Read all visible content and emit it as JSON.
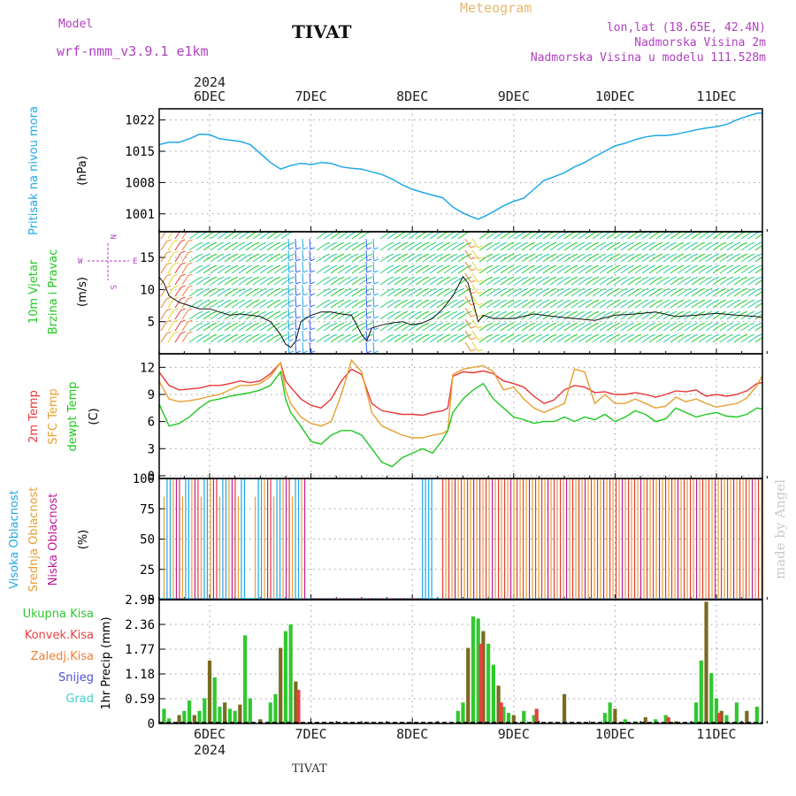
{
  "header": {
    "model_label": "Model",
    "model_name": "wrf-nmm_v3.9.1 e1km",
    "station": "TIVAT",
    "product": "Meteogram",
    "lonlat": "lon,lat (18.65E, 42.4N)",
    "elevation": "Nadmorska Visina 2m",
    "model_elevation": "Nadmorska Visina u modelu 111.528m",
    "credit": "made by Angel",
    "footer_station": "TIVAT"
  },
  "time_axis": {
    "year": "2024",
    "days": [
      "6DEC",
      "7DEC",
      "8DEC",
      "9DEC",
      "10DEC",
      "11DEC"
    ]
  },
  "colors": {
    "pressure": "#20a8e8",
    "temp2m": "#e83838",
    "sfc": "#e8a030",
    "dewpt": "#20c820",
    "cloud_high": "#20a8e8",
    "cloud_mid": "#e8a030",
    "cloud_low": "#c0189a",
    "precip_total": "#30c830",
    "precip_conv": "#e84040",
    "precip_freeze": "#f08030",
    "precip_snow": "#5050e0",
    "precip_hail": "#40d0d0",
    "precip_brown": "#7a6a20"
  },
  "panels": {
    "pressure": {
      "label1": "Pritisak na nivou mora",
      "unit": "(hPa)"
    },
    "wind": {
      "label1": "10m Vjetar",
      "label2": "Brzina i Pravac",
      "unit": "(m/s)",
      "compass_w": "W",
      "compass_e": "E",
      "compass_n": "N",
      "compass_s": "S"
    },
    "temperature": {
      "label1": "2m Temp",
      "label2": "SFC Temp",
      "label3": "dewpt Temp",
      "unit": "(C)"
    },
    "clouds": {
      "label1": "Visoka Oblacnost",
      "label2": "Srednja Oblacnost",
      "label3": "Niska Oblacnost",
      "unit": "(%)"
    },
    "precip": {
      "legend": [
        "Ukupna Kisa",
        "Konvek.Kisa",
        "Zaledj.Kisa",
        "Snijeg",
        "Grad"
      ],
      "unit": "1hr Precip (mm)"
    }
  },
  "chart_data": [
    {
      "type": "line",
      "panel": "pressure",
      "ylabel": "(hPa)",
      "yticks": [
        1001,
        1008,
        1015,
        1022
      ],
      "ylim": [
        997,
        1024.5
      ],
      "series": [
        {
          "name": "Pritisak na nivou mora",
          "x": [
            -0.5,
            -0.4,
            -0.3,
            -0.2,
            -0.1,
            0.0,
            0.1,
            0.2,
            0.3,
            0.4,
            0.5,
            0.6,
            0.7,
            0.8,
            0.9,
            0.95,
            1.0,
            1.1,
            1.2,
            1.3,
            1.4,
            1.5,
            1.6,
            1.7,
            1.8,
            1.9,
            2.0,
            2.1,
            2.2,
            2.3,
            2.4,
            2.5,
            2.6,
            2.65,
            2.7,
            2.8,
            2.9,
            3.0,
            3.1,
            3.2,
            3.3,
            3.4,
            3.5,
            3.6,
            3.7,
            3.8,
            3.9,
            4.0,
            4.1,
            4.2,
            4.3,
            4.4,
            4.5,
            4.6,
            4.7,
            4.8,
            4.9,
            5.0,
            5.1,
            5.2,
            5.3,
            5.4,
            5.5
          ],
          "values": [
            1016.5,
            1017.0,
            1017.0,
            1017.8,
            1018.8,
            1018.7,
            1017.8,
            1017.5,
            1017.2,
            1016.5,
            1014.5,
            1012.5,
            1011.0,
            1011.8,
            1012.3,
            1012.2,
            1012.0,
            1012.5,
            1012.3,
            1011.5,
            1011.2,
            1011.0,
            1010.4,
            1009.8,
            1008.8,
            1007.5,
            1006.5,
            1005.8,
            1005.2,
            1004.6,
            1002.5,
            1001.2,
            1000.2,
            999.8,
            1000.3,
            1001.5,
            1002.8,
            1003.8,
            1004.5,
            1006.5,
            1008.5,
            1009.3,
            1010.2,
            1011.5,
            1012.5,
            1013.8,
            1015.0,
            1016.2,
            1016.8,
            1017.6,
            1018.2,
            1018.5,
            1018.5,
            1018.8,
            1019.3,
            1019.8,
            1020.2,
            1020.5,
            1021.0,
            1022.0,
            1022.8,
            1023.5,
            1023.6
          ]
        }
      ]
    },
    {
      "type": "line",
      "panel": "wind",
      "ylabel": "(m/s)",
      "yticks": [
        5,
        10,
        15
      ],
      "ylim": [
        0,
        19
      ],
      "series": [
        {
          "name": "10m Vjetar brzina",
          "x": [
            -0.5,
            -0.45,
            -0.4,
            -0.3,
            -0.2,
            -0.1,
            0.0,
            0.1,
            0.2,
            0.3,
            0.4,
            0.5,
            0.6,
            0.7,
            0.75,
            0.8,
            0.85,
            0.9,
            1.0,
            1.1,
            1.2,
            1.3,
            1.4,
            1.5,
            1.55,
            1.6,
            1.7,
            1.8,
            1.9,
            2.0,
            2.1,
            2.2,
            2.3,
            2.4,
            2.5,
            2.55,
            2.6,
            2.65,
            2.7,
            2.8,
            2.9,
            3.0,
            3.2,
            3.4,
            3.6,
            3.8,
            4.0,
            4.2,
            4.4,
            4.6,
            4.8,
            5.0,
            5.2,
            5.4,
            5.5
          ],
          "values": [
            12,
            11,
            9,
            8,
            7.5,
            7,
            7,
            6.5,
            6,
            6.2,
            6,
            5.8,
            5,
            3,
            1.5,
            1,
            2,
            5,
            6,
            6.5,
            6.5,
            6.2,
            6,
            3,
            2,
            4,
            4.5,
            4.8,
            5,
            4.5,
            4.8,
            5.5,
            7,
            9,
            12,
            11,
            8,
            5,
            6,
            5.5,
            5.5,
            5.5,
            6.2,
            5.8,
            5.5,
            5.2,
            6,
            6.2,
            6.5,
            5.8,
            6,
            6.3,
            6,
            5.8,
            5.5
          ]
        }
      ]
    },
    {
      "type": "line",
      "panel": "temperature",
      "ylabel": "(C)",
      "yticks": [
        0,
        3,
        6,
        9,
        12
      ],
      "ylim": [
        -0.3,
        13.5
      ],
      "x": [
        -0.5,
        -0.4,
        -0.3,
        -0.2,
        -0.1,
        0.0,
        0.1,
        0.2,
        0.3,
        0.4,
        0.5,
        0.6,
        0.7,
        0.75,
        0.8,
        0.9,
        1.0,
        1.1,
        1.2,
        1.3,
        1.4,
        1.5,
        1.6,
        1.7,
        1.8,
        1.9,
        2.0,
        2.1,
        2.2,
        2.3,
        2.35,
        2.4,
        2.5,
        2.6,
        2.7,
        2.8,
        2.9,
        3.0,
        3.1,
        3.2,
        3.3,
        3.4,
        3.5,
        3.6,
        3.7,
        3.8,
        3.9,
        4.0,
        4.1,
        4.2,
        4.3,
        4.4,
        4.5,
        4.6,
        4.7,
        4.8,
        4.9,
        5.0,
        5.1,
        5.2,
        5.3,
        5.4,
        5.5
      ],
      "series": [
        {
          "name": "2m Temp",
          "values": [
            11.5,
            10,
            9.5,
            9.6,
            9.7,
            10,
            10,
            10.2,
            10.5,
            10.3,
            10.5,
            11.3,
            12.5,
            10.5,
            9.8,
            8.5,
            7.8,
            7.5,
            8.5,
            10.5,
            11.8,
            11.2,
            8,
            7.2,
            7,
            6.8,
            6.8,
            6.7,
            7.0,
            7.2,
            7.5,
            11.0,
            11.5,
            11.4,
            11.6,
            11.3,
            10.5,
            10.2,
            9.8,
            8.8,
            8.0,
            8.4,
            9.5,
            10,
            9.8,
            9.2,
            9.3,
            9.0,
            9.0,
            9.2,
            9.0,
            8.7,
            9.0,
            9.4,
            9.3,
            9.5,
            8.8,
            9.0,
            8.8,
            9.0,
            9.4,
            10.2,
            10.4
          ]
        },
        {
          "name": "SFC Temp",
          "values": [
            10.5,
            8.5,
            8.2,
            8.3,
            8.5,
            8.8,
            9.0,
            9.5,
            10.0,
            10.0,
            10.2,
            11.0,
            12.5,
            9.5,
            8.0,
            6.5,
            5.8,
            5.5,
            6.0,
            9.0,
            12.8,
            11.5,
            7.0,
            5.5,
            5.0,
            4.5,
            4.2,
            4.2,
            4.5,
            4.7,
            5.0,
            11.2,
            11.8,
            12.0,
            12.2,
            11.5,
            9.5,
            9.8,
            8.5,
            7.5,
            7.0,
            7.5,
            8.0,
            11.8,
            11.5,
            8.0,
            9.0,
            8.0,
            8.0,
            8.5,
            8.0,
            7.5,
            7.7,
            8.7,
            8.2,
            8.5,
            8.0,
            7.6,
            7.8,
            8.0,
            8.6,
            10.0,
            12.0
          ]
        },
        {
          "name": "dewpt Temp",
          "values": [
            8.0,
            5.5,
            5.8,
            6.5,
            7.5,
            8.3,
            8.5,
            8.8,
            9.0,
            9.2,
            9.5,
            10.0,
            11.5,
            8.5,
            7.0,
            5.5,
            3.8,
            3.5,
            4.5,
            5.0,
            5.0,
            4.5,
            3.0,
            1.5,
            1.0,
            2.0,
            2.5,
            3.0,
            2.5,
            4.0,
            5.0,
            7.0,
            8.5,
            9.5,
            10.2,
            8.5,
            7.5,
            6.5,
            6.2,
            5.8,
            6.0,
            6.0,
            6.5,
            6.0,
            6.5,
            6.2,
            6.8,
            6.0,
            6.5,
            7.2,
            6.8,
            6.0,
            6.3,
            7.5,
            7.0,
            6.5,
            6.8,
            7.0,
            6.6,
            6.5,
            6.8,
            7.5,
            7.3
          ]
        }
      ]
    },
    {
      "type": "bar",
      "panel": "clouds",
      "ylabel": "(%)",
      "yticks": [
        0,
        25,
        50,
        75,
        100
      ],
      "ylim": [
        0,
        100
      ],
      "periods": [
        {
          "start": -0.45,
          "end": 0.35,
          "layers": "mixed",
          "level": 100
        },
        {
          "start": 0.45,
          "end": 0.95,
          "layers": "mixed",
          "level": 100
        },
        {
          "start": 0.95,
          "end": 2.1,
          "layers": "none",
          "level": 0
        },
        {
          "start": 2.1,
          "end": 2.2,
          "layers": "high",
          "level": 100
        },
        {
          "start": 2.3,
          "end": 5.5,
          "layers": "mid-low",
          "level": 100
        }
      ]
    },
    {
      "type": "bar",
      "panel": "precip",
      "ylabel": "1hr Precip (mm)",
      "yticks": [
        0,
        0.59,
        1.18,
        1.77,
        2.36,
        2.95
      ],
      "ylim": [
        0,
        2.95
      ],
      "series": [
        {
          "name": "Ukupna Kisa",
          "x": [
            -0.45,
            -0.4,
            -0.3,
            -0.25,
            -0.2,
            -0.15,
            -0.1,
            -0.05,
            0.0,
            0.05,
            0.1,
            0.15,
            0.2,
            0.25,
            0.3,
            0.35,
            0.4,
            0.5,
            0.6,
            0.65,
            0.7,
            0.75,
            0.8,
            0.85,
            2.45,
            2.5,
            2.55,
            2.6,
            2.65,
            2.7,
            2.75,
            2.8,
            2.85,
            2.9,
            2.95,
            3.0,
            3.1,
            3.2,
            3.5,
            3.9,
            3.95,
            4.0,
            4.1,
            4.2,
            4.3,
            4.4,
            4.5,
            4.6,
            4.8,
            4.85,
            4.9,
            4.95,
            5.0,
            5.05,
            5.1,
            5.2,
            5.3,
            5.4,
            5.5
          ],
          "values": [
            0.35,
            0.12,
            0.2,
            0.3,
            0.55,
            0.2,
            0.3,
            0.6,
            1.5,
            1.1,
            0.4,
            0.5,
            0.35,
            0.3,
            0.45,
            2.1,
            0.6,
            0.1,
            0.5,
            0.7,
            1.8,
            2.2,
            2.36,
            1.0,
            0.3,
            0.5,
            1.8,
            2.55,
            2.5,
            2.2,
            1.9,
            1.4,
            0.9,
            0.4,
            0.25,
            0.2,
            0.3,
            0.2,
            0.7,
            0.25,
            0.5,
            0.35,
            0.1,
            0.05,
            0.15,
            0.1,
            0.2,
            0.05,
            0.5,
            1.5,
            2.9,
            1.2,
            0.6,
            0.3,
            0.2,
            0.5,
            0.3,
            0.4,
            0.15
          ]
        },
        {
          "name": "Konvek.Kisa",
          "x": [
            0.85,
            2.65,
            2.85,
            3.2,
            4.5,
            5.0
          ],
          "values": [
            0.8,
            1.9,
            0.5,
            0.35,
            0.15,
            0.25
          ]
        }
      ]
    }
  ]
}
